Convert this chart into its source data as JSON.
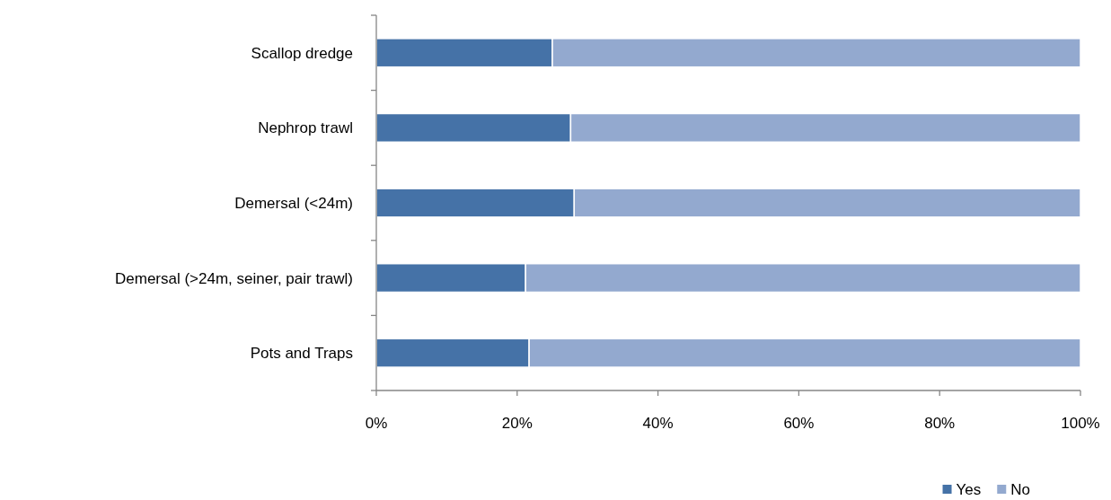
{
  "chart_data": {
    "type": "bar",
    "orientation": "horizontal",
    "stacked": true,
    "categories": [
      "Scallop dredge",
      "Nephrop trawl",
      "Demersal (<24m)",
      "Demersal (>24m, seiner, pair trawl)",
      "Pots and Traps"
    ],
    "series": [
      {
        "name": "Yes",
        "color": "#4572a7",
        "values": [
          25,
          27.6,
          28.1,
          21.2,
          21.7
        ]
      },
      {
        "name": "No",
        "color": "#93a9cf",
        "values": [
          75,
          72.4,
          71.9,
          78.8,
          78.3
        ]
      }
    ],
    "xlim": [
      0,
      100
    ],
    "xticks": [
      {
        "value": 0,
        "label": "0%"
      },
      {
        "value": 20,
        "label": "20%"
      },
      {
        "value": 40,
        "label": "40%"
      },
      {
        "value": 60,
        "label": "60%"
      },
      {
        "value": 80,
        "label": "80%"
      },
      {
        "value": 100,
        "label": "100%"
      }
    ],
    "legend": "bottom right"
  }
}
